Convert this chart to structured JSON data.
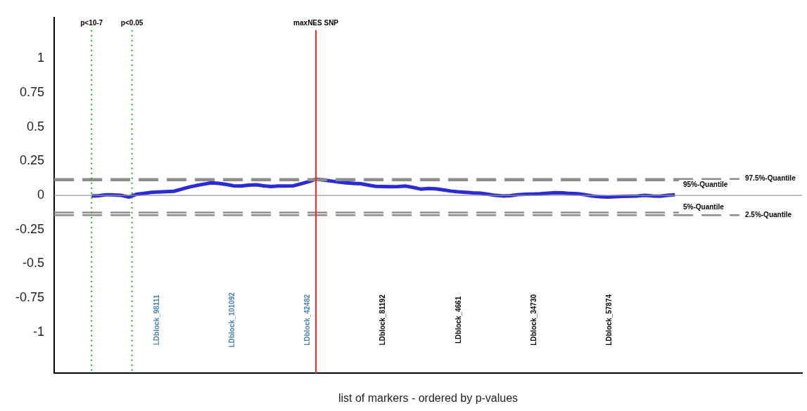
{
  "chart_data": {
    "type": "line",
    "xlabel": "list of markers - ordered by p-values",
    "categories": [
      null,
      null,
      null,
      null,
      null,
      null,
      null,
      null,
      null,
      null,
      null,
      null,
      null,
      null,
      null,
      null,
      null,
      null,
      null,
      null,
      null,
      null,
      null,
      null,
      null,
      null,
      null,
      null,
      null,
      null,
      null,
      null,
      null,
      null,
      null,
      null,
      null,
      null,
      null,
      null,
      null,
      null,
      null,
      null,
      null,
      null,
      null,
      null,
      null,
      null,
      null,
      null,
      null,
      null,
      null,
      null,
      null,
      null,
      null,
      null,
      null,
      null,
      null,
      null,
      null,
      null,
      null,
      null,
      null,
      null,
      null,
      null,
      null,
      null,
      null,
      null,
      null,
      null,
      null,
      null,
      null,
      null,
      null,
      null,
      null,
      null,
      null,
      null,
      null,
      null,
      null,
      null,
      null,
      null,
      null,
      null,
      null,
      null,
      null,
      null,
      null
    ],
    "ylim": [
      -1.3,
      1.3
    ],
    "yticks": [
      -1,
      -0.75,
      -0.5,
      -0.25,
      0,
      0.25,
      0.5,
      0.75,
      1
    ],
    "grid": false,
    "legend": false,
    "marker": "none",
    "line_style": "solid",
    "series": [
      {
        "color": "#2a2ad8",
        "values": [
          null,
          null,
          null,
          null,
          null,
          -0.005,
          -0.002,
          0.005,
          0.003,
          0.0,
          -0.012,
          0.008,
          0.015,
          0.022,
          0.025,
          0.028,
          0.03,
          0.045,
          0.06,
          0.072,
          0.082,
          0.092,
          0.088,
          0.08,
          0.07,
          0.068,
          0.075,
          0.078,
          0.07,
          0.065,
          0.068,
          0.068,
          0.07,
          0.085,
          0.1,
          0.118,
          0.112,
          0.105,
          0.098,
          0.092,
          0.088,
          0.085,
          0.075,
          0.066,
          0.065,
          0.064,
          0.065,
          0.068,
          0.058,
          0.046,
          0.05,
          0.048,
          0.04,
          0.032,
          0.026,
          0.022,
          0.018,
          0.016,
          0.008,
          0.0,
          -0.004,
          -0.002,
          0.005,
          0.008,
          0.01,
          0.012,
          0.016,
          0.02,
          0.018,
          0.014,
          0.012,
          0.004,
          -0.005,
          -0.01,
          -0.012,
          -0.01,
          -0.007,
          -0.006,
          -0.004,
          0.0,
          -0.004,
          -0.006,
          0.0,
          0.004,
          null,
          null,
          null,
          null,
          null,
          null,
          null,
          null,
          null,
          null,
          null,
          null,
          null,
          null,
          null,
          null,
          null
        ]
      }
    ],
    "ref_lines": [
      {
        "axis": "y",
        "value": 0,
        "label": null,
        "color": "#999999",
        "line_style": "solid"
      },
      {
        "axis": "y",
        "value": 0.11,
        "label": "95%-Quantile",
        "color": "#8c8c8c",
        "line_style": "dashed"
      },
      {
        "axis": "y",
        "value": 0.12,
        "label": "97.5%-Quantile",
        "color": "#8c8c8c",
        "line_style": "dashed"
      },
      {
        "axis": "y",
        "value": -0.125,
        "label": "5%-Quantile",
        "color": "#8c8c8c",
        "line_style": "dashed"
      },
      {
        "axis": "y",
        "value": -0.145,
        "label": "2.5%-Quantile",
        "color": "#8c8c8c",
        "line_style": "dashed"
      }
    ],
    "annotations": [
      "p<10-7",
      "p<0.05",
      "maxNES SNP",
      "LDblock_98111",
      "LDblock_101092",
      "LDblock_42482",
      "LDblock_81192",
      "LDblock_4661",
      "LDblock_34730",
      "LDblock_57874"
    ]
  }
}
